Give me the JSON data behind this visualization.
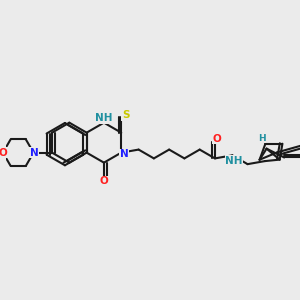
{
  "bg_color": "#ebebeb",
  "bond_color": "#1a1a1a",
  "bond_width": 1.5,
  "atom_colors": {
    "N": "#2020ff",
    "O": "#ff2020",
    "S": "#c8c800",
    "NH": "#2090a0",
    "C": "#1a1a1a"
  },
  "font_size": 7.5
}
